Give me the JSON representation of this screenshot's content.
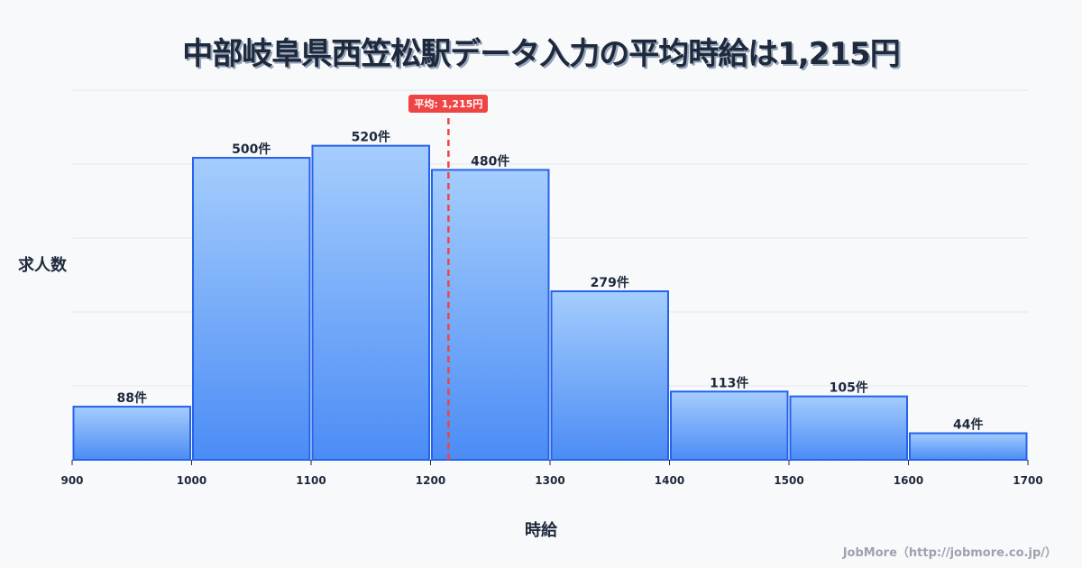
{
  "title": "中部岐阜県西笠松駅データ入力の平均時給は1,215円",
  "y_axis_label": "求人数",
  "x_axis_label": "時給",
  "mean_label": "平均: 1,215円",
  "credit": "JobMore（http://jobmore.co.jp/）",
  "colors": {
    "bar_top": "#a5cdfd",
    "bar_bottom": "#4b8cf5",
    "bar_border": "#2563eb",
    "mean_line": "#ef4444"
  },
  "chart_data": {
    "type": "bar",
    "title": "中部岐阜県西笠松駅データ入力の平均時給は1,215円",
    "xlabel": "時給",
    "ylabel": "求人数",
    "bins": [
      [
        900,
        1000
      ],
      [
        1000,
        1100
      ],
      [
        1100,
        1200
      ],
      [
        1200,
        1300
      ],
      [
        1300,
        1400
      ],
      [
        1400,
        1500
      ],
      [
        1500,
        1600
      ],
      [
        1600,
        1700
      ]
    ],
    "categories": [
      "900-1000",
      "1000-1100",
      "1100-1200",
      "1200-1300",
      "1300-1400",
      "1400-1500",
      "1500-1600",
      "1600-1700"
    ],
    "values": [
      88,
      500,
      520,
      480,
      279,
      113,
      105,
      44
    ],
    "value_labels": [
      "88件",
      "500件",
      "520件",
      "480件",
      "279件",
      "113件",
      "105件",
      "44件"
    ],
    "x_ticks": [
      "900",
      "1000",
      "1100",
      "1200",
      "1300",
      "1400",
      "1500",
      "1600",
      "1700"
    ],
    "xlim": [
      900,
      1700
    ],
    "mean": 1215,
    "grid": true
  }
}
